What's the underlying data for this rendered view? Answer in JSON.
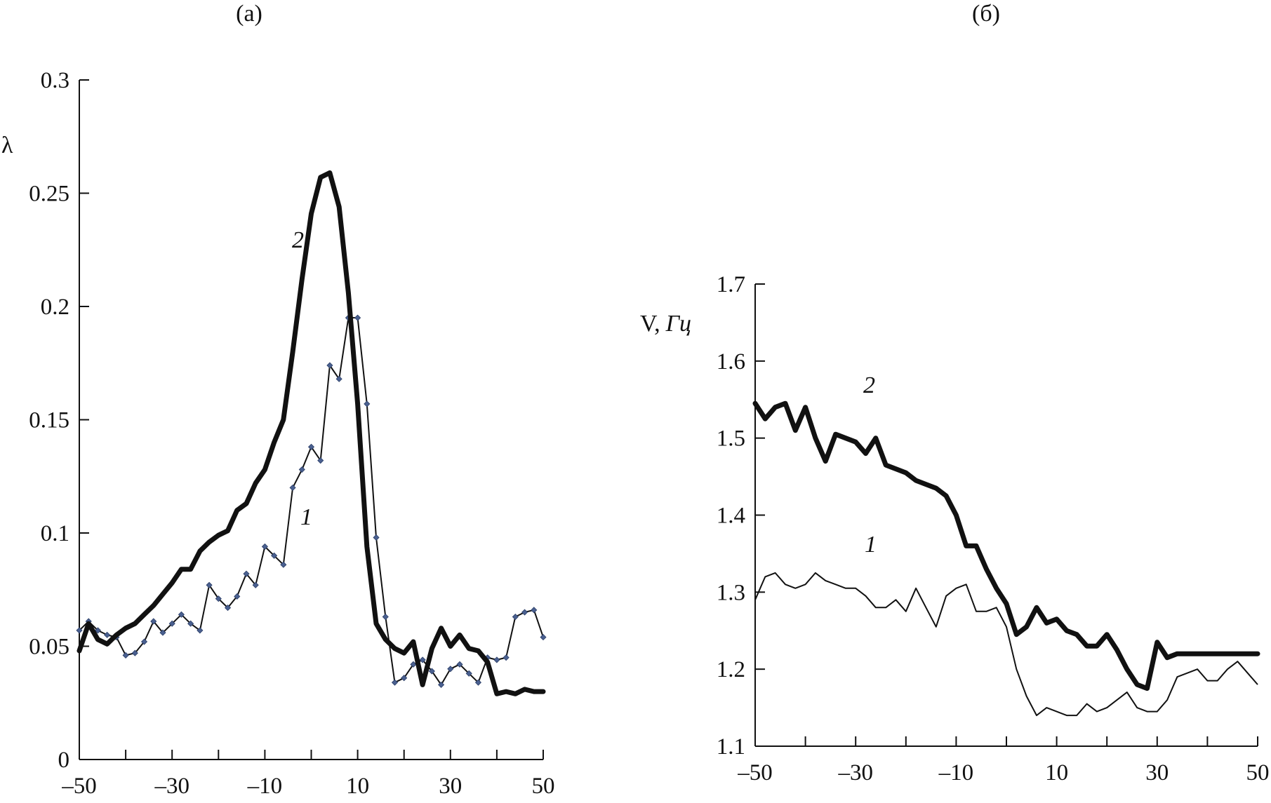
{
  "colors": {
    "line": "#111111",
    "marker": "#4a6090"
  },
  "chart_data": [
    {
      "type": "line",
      "panel_label": "(a)",
      "ylabel": "λ",
      "xlim": [
        -50,
        50
      ],
      "ylim": [
        0,
        0.3
      ],
      "x_ticks": [
        -50,
        -30,
        -10,
        10,
        30,
        50
      ],
      "x_tick_labels": [
        "–50",
        "–30",
        "–10",
        "10",
        "30",
        "50"
      ],
      "y_ticks": [
        0,
        0.05,
        0.1,
        0.15,
        0.2,
        0.25,
        0.3
      ],
      "y_tick_labels": [
        "0",
        "0.05",
        "0.1",
        "0.15",
        "0.2",
        "0.25",
        "0.3"
      ],
      "grid": false,
      "series": [
        {
          "name": "1",
          "style": "thin-with-markers",
          "x": [
            -50,
            -48,
            -46,
            -44,
            -42,
            -40,
            -38,
            -36,
            -34,
            -32,
            -30,
            -28,
            -26,
            -24,
            -22,
            -20,
            -18,
            -16,
            -14,
            -12,
            -10,
            -8,
            -6,
            -4,
            -2,
            0,
            2,
            4,
            6,
            8,
            10,
            12,
            14,
            16,
            18,
            20,
            22,
            24,
            26,
            28,
            30,
            32,
            34,
            36,
            38,
            40,
            42,
            44,
            46,
            48,
            50
          ],
          "values": [
            0.057,
            0.061,
            0.057,
            0.055,
            0.054,
            0.046,
            0.047,
            0.052,
            0.061,
            0.056,
            0.06,
            0.064,
            0.06,
            0.057,
            0.077,
            0.071,
            0.067,
            0.072,
            0.082,
            0.077,
            0.094,
            0.09,
            0.086,
            0.12,
            0.128,
            0.138,
            0.132,
            0.174,
            0.168,
            0.195,
            0.195,
            0.157,
            0.098,
            0.063,
            0.034,
            0.036,
            0.042,
            0.044,
            0.039,
            0.033,
            0.04,
            0.042,
            0.038,
            0.034,
            0.045,
            0.044,
            0.045,
            0.063,
            0.065,
            0.066,
            0.054
          ]
        },
        {
          "name": "2",
          "style": "thick",
          "x": [
            -50,
            -48,
            -46,
            -44,
            -42,
            -40,
            -38,
            -36,
            -34,
            -32,
            -30,
            -28,
            -26,
            -24,
            -22,
            -20,
            -18,
            -16,
            -14,
            -12,
            -10,
            -8,
            -6,
            -4,
            -2,
            0,
            2,
            4,
            6,
            8,
            10,
            12,
            14,
            16,
            18,
            20,
            22,
            24,
            26,
            28,
            30,
            32,
            34,
            36,
            38,
            40,
            42,
            44,
            46,
            48,
            50
          ],
          "values": [
            0.048,
            0.06,
            0.053,
            0.051,
            0.055,
            0.058,
            0.06,
            0.064,
            0.068,
            0.073,
            0.078,
            0.084,
            0.084,
            0.092,
            0.096,
            0.099,
            0.101,
            0.11,
            0.113,
            0.122,
            0.128,
            0.14,
            0.15,
            0.18,
            0.212,
            0.241,
            0.257,
            0.259,
            0.244,
            0.206,
            0.157,
            0.094,
            0.06,
            0.053,
            0.049,
            0.047,
            0.052,
            0.033,
            0.049,
            0.058,
            0.05,
            0.055,
            0.049,
            0.048,
            0.043,
            0.029,
            0.03,
            0.029,
            0.031,
            0.03,
            0.03
          ]
        }
      ]
    },
    {
      "type": "line",
      "panel_label": "(б)",
      "ylabel": "V,",
      "ylabel_unit": "Гц",
      "xlim": [
        -50,
        50
      ],
      "ylim": [
        1.1,
        1.7
      ],
      "x_ticks": [
        -50,
        -30,
        -10,
        10,
        30,
        50
      ],
      "x_tick_labels": [
        "–50",
        "–30",
        "–10",
        "10",
        "30",
        "50"
      ],
      "y_ticks": [
        1.1,
        1.2,
        1.3,
        1.4,
        1.5,
        1.6,
        1.7
      ],
      "y_tick_labels": [
        "1.1",
        "1.2",
        "1.3",
        "1.4",
        "1.5",
        "1.6",
        "1.7"
      ],
      "grid": false,
      "series": [
        {
          "name": "1",
          "style": "thin",
          "x": [
            -50,
            -48,
            -46,
            -44,
            -42,
            -40,
            -38,
            -36,
            -34,
            -32,
            -30,
            -28,
            -26,
            -24,
            -22,
            -20,
            -18,
            -16,
            -14,
            -12,
            -10,
            -8,
            -6,
            -4,
            -2,
            0,
            2,
            4,
            6,
            8,
            10,
            12,
            14,
            16,
            18,
            20,
            22,
            24,
            26,
            28,
            30,
            32,
            34,
            36,
            38,
            40,
            42,
            44,
            46,
            48,
            50
          ],
          "values": [
            1.29,
            1.32,
            1.325,
            1.31,
            1.305,
            1.31,
            1.325,
            1.315,
            1.31,
            1.305,
            1.305,
            1.295,
            1.28,
            1.28,
            1.29,
            1.275,
            1.305,
            1.28,
            1.255,
            1.295,
            1.305,
            1.31,
            1.275,
            1.275,
            1.28,
            1.255,
            1.2,
            1.165,
            1.14,
            1.15,
            1.145,
            1.14,
            1.14,
            1.155,
            1.145,
            1.15,
            1.16,
            1.17,
            1.15,
            1.145,
            1.145,
            1.16,
            1.19,
            1.195,
            1.2,
            1.185,
            1.185,
            1.2,
            1.21,
            1.195,
            1.18
          ]
        },
        {
          "name": "2",
          "style": "thick",
          "x": [
            -50,
            -48,
            -46,
            -44,
            -42,
            -40,
            -38,
            -36,
            -34,
            -32,
            -30,
            -28,
            -26,
            -24,
            -22,
            -20,
            -18,
            -16,
            -14,
            -12,
            -10,
            -8,
            -6,
            -4,
            -2,
            0,
            2,
            4,
            6,
            8,
            10,
            12,
            14,
            16,
            18,
            20,
            22,
            24,
            26,
            28,
            30,
            32,
            34,
            36,
            38,
            40,
            42,
            44,
            46,
            48,
            50
          ],
          "values": [
            1.545,
            1.525,
            1.54,
            1.545,
            1.51,
            1.54,
            1.5,
            1.47,
            1.505,
            1.5,
            1.495,
            1.48,
            1.5,
            1.465,
            1.46,
            1.455,
            1.445,
            1.44,
            1.435,
            1.425,
            1.4,
            1.36,
            1.36,
            1.33,
            1.305,
            1.285,
            1.245,
            1.255,
            1.28,
            1.26,
            1.265,
            1.25,
            1.245,
            1.23,
            1.23,
            1.245,
            1.225,
            1.2,
            1.18,
            1.175,
            1.235,
            1.215,
            1.22,
            1.22,
            1.22,
            1.22,
            1.22,
            1.22,
            1.22,
            1.22,
            1.22
          ]
        }
      ]
    }
  ]
}
